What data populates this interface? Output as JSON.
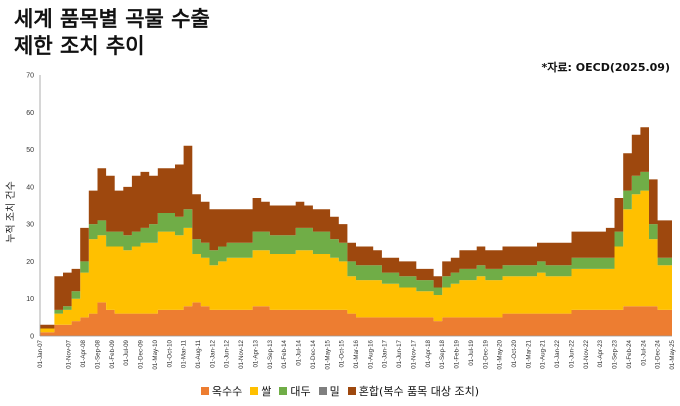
{
  "title_lines": [
    "세계 품목별 곡물 수출",
    "제한 조치 추이"
  ],
  "source": "*자료: OECD(2025.09)",
  "chart_data": {
    "type": "area",
    "stacked": true,
    "ylabel": "누적 조치 건수",
    "xlabel": "",
    "ylim": [
      0,
      70
    ],
    "yticks": [
      0,
      10,
      20,
      30,
      40,
      50,
      60,
      70
    ],
    "grid": false,
    "legend_position": "bottom",
    "x_tick_labels": [
      "01-Jan-07",
      "01-Nov-07",
      "01-Apr-08",
      "01-Sep-08",
      "01-Feb-09",
      "01-Jul-09",
      "01-Dec-09",
      "01-May-10",
      "01-Oct-10",
      "01-Mar-11",
      "01-Aug-11",
      "01-Jan-12",
      "01-Jun-12",
      "01-Nov-12",
      "01-Apr-13",
      "01-Sep-13",
      "01-Feb-14",
      "01-Jul-14",
      "01-Dec-14",
      "01-May-15",
      "01-Oct-15",
      "01-Mar-16",
      "01-Aug-16",
      "01-Jan-17",
      "01-Jun-17",
      "01-Nov-17",
      "01-Apr-18",
      "01-Sep-18",
      "01-Feb-19",
      "01-Jul-19",
      "01-Dec-19",
      "01-May-20",
      "01-Oct-20",
      "01-Mar-21",
      "01-Aug-21",
      "01-Jan-22",
      "01-Jun-22",
      "01-Nov-22",
      "01-Apr-23",
      "01-Sep-23",
      "01-Feb-24",
      "01-Jul-24",
      "01-Dec-24",
      "01-May-25"
    ],
    "x": [
      "2007-01",
      "2007-03",
      "2007-06",
      "2007-09",
      "2007-12",
      "2008-03",
      "2008-06",
      "2008-09",
      "2008-12",
      "2009-03",
      "2009-06",
      "2009-09",
      "2009-12",
      "2010-03",
      "2010-06",
      "2010-09",
      "2010-12",
      "2011-03",
      "2011-06",
      "2011-09",
      "2011-12",
      "2012-03",
      "2012-06",
      "2012-09",
      "2012-12",
      "2013-03",
      "2013-06",
      "2013-09",
      "2013-12",
      "2014-03",
      "2014-06",
      "2014-09",
      "2014-12",
      "2015-03",
      "2015-06",
      "2015-09",
      "2015-12",
      "2016-03",
      "2016-06",
      "2016-09",
      "2016-12",
      "2017-03",
      "2017-06",
      "2017-09",
      "2017-12",
      "2018-03",
      "2018-06",
      "2018-09",
      "2018-12",
      "2019-03",
      "2019-06",
      "2019-09",
      "2019-12",
      "2020-03",
      "2020-06",
      "2020-09",
      "2020-12",
      "2021-03",
      "2021-06",
      "2021-09",
      "2021-12",
      "2022-03",
      "2022-06",
      "2022-09",
      "2022-12",
      "2023-03",
      "2023-06",
      "2023-09",
      "2023-12",
      "2024-03",
      "2024-06",
      "2024-09",
      "2024-12",
      "2025-03",
      "2025-05"
    ],
    "series": [
      {
        "name": "옥수수",
        "color": "#ED7D31",
        "values": [
          1,
          1,
          3,
          3,
          4,
          5,
          6,
          9,
          7,
          6,
          6,
          6,
          6,
          6,
          7,
          7,
          7,
          8,
          9,
          8,
          7,
          7,
          7,
          7,
          7,
          8,
          8,
          7,
          7,
          7,
          7,
          7,
          7,
          7,
          7,
          7,
          6,
          5,
          5,
          5,
          5,
          5,
          5,
          5,
          5,
          5,
          4,
          5,
          5,
          5,
          5,
          5,
          5,
          5,
          6,
          6,
          6,
          6,
          6,
          6,
          6,
          6,
          7,
          7,
          7,
          7,
          7,
          7,
          8,
          8,
          8,
          8,
          7,
          7,
          7
        ]
      },
      {
        "name": "쌀",
        "color": "#FFC000",
        "values": [
          1,
          1,
          3,
          4,
          6,
          12,
          20,
          18,
          17,
          18,
          17,
          18,
          19,
          19,
          21,
          21,
          20,
          21,
          13,
          13,
          12,
          13,
          14,
          14,
          14,
          15,
          15,
          15,
          15,
          15,
          16,
          16,
          15,
          15,
          14,
          13,
          10,
          10,
          10,
          10,
          9,
          9,
          8,
          8,
          7,
          7,
          7,
          8,
          9,
          10,
          10,
          11,
          10,
          10,
          10,
          10,
          10,
          10,
          11,
          10,
          10,
          10,
          11,
          11,
          11,
          11,
          11,
          17,
          26,
          30,
          31,
          18,
          12,
          12,
          12
        ]
      },
      {
        "name": "대두",
        "color": "#70AD47",
        "values": [
          0,
          0,
          1,
          1,
          2,
          3,
          4,
          4,
          4,
          4,
          4,
          4,
          4,
          5,
          5,
          5,
          5,
          5,
          4,
          4,
          4,
          4,
          4,
          4,
          4,
          5,
          5,
          5,
          5,
          5,
          6,
          6,
          6,
          6,
          5,
          5,
          4,
          4,
          4,
          4,
          3,
          3,
          3,
          3,
          3,
          3,
          2,
          3,
          3,
          3,
          3,
          3,
          3,
          3,
          3,
          3,
          3,
          3,
          3,
          3,
          3,
          3,
          3,
          3,
          3,
          3,
          3,
          4,
          5,
          5,
          5,
          4,
          2,
          2,
          2
        ]
      },
      {
        "name": "밀",
        "color": "#7F7F7F",
        "values": [
          0,
          0,
          0,
          0,
          0,
          0,
          0,
          0,
          0,
          0,
          0,
          0,
          0,
          0,
          0,
          0,
          0,
          0,
          0,
          0,
          0,
          0,
          0,
          0,
          0,
          0,
          0,
          0,
          0,
          0,
          0,
          0,
          0,
          0,
          0,
          0,
          0,
          0,
          0,
          0,
          0,
          0,
          0,
          0,
          0,
          0,
          0,
          0,
          0,
          0,
          0,
          0,
          0,
          0,
          0,
          0,
          0,
          0,
          0,
          0,
          0,
          0,
          0,
          0,
          0,
          0,
          0,
          0,
          0,
          0,
          0,
          0,
          0,
          0,
          0
        ]
      },
      {
        "name": "혼합(복수 품목 대상 조치)",
        "color": "#9E480E",
        "values": [
          1,
          1,
          9,
          9,
          6,
          9,
          9,
          14,
          15,
          11,
          13,
          15,
          15,
          13,
          12,
          12,
          14,
          17,
          12,
          11,
          11,
          10,
          9,
          9,
          9,
          9,
          8,
          8,
          8,
          8,
          7,
          6,
          6,
          6,
          6,
          5,
          5,
          5,
          5,
          4,
          4,
          4,
          4,
          4,
          3,
          3,
          3,
          4,
          4,
          5,
          5,
          5,
          5,
          5,
          5,
          5,
          5,
          5,
          5,
          6,
          6,
          6,
          7,
          7,
          7,
          7,
          8,
          9,
          10,
          11,
          12,
          12,
          10,
          10,
          10
        ]
      }
    ]
  }
}
